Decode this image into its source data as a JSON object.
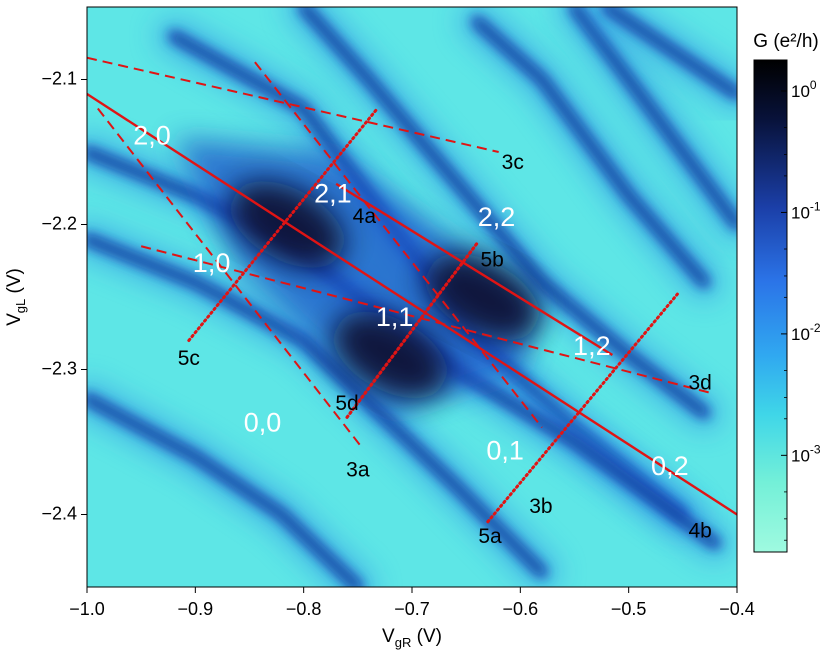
{
  "chart_data": {
    "type": "heatmap",
    "title": "",
    "xlabel": {
      "main": "V",
      "sub": "gR",
      "unit": " (V)"
    },
    "ylabel": {
      "main": "V",
      "sub": "gL",
      "unit": " (V)"
    },
    "xlim": [
      -1.0,
      -0.4
    ],
    "ylim": [
      -2.45,
      -2.05
    ],
    "x_ticks": [
      {
        "value": -1.0,
        "label": "−1.0"
      },
      {
        "value": -0.9,
        "label": "−0.9"
      },
      {
        "value": -0.8,
        "label": "−0.8"
      },
      {
        "value": -0.7,
        "label": "−0.7"
      },
      {
        "value": -0.6,
        "label": "−0.6"
      },
      {
        "value": -0.5,
        "label": "−0.5"
      },
      {
        "value": -0.4,
        "label": "−0.4"
      }
    ],
    "y_ticks": [
      {
        "value": -2.1,
        "label": "−2.1"
      },
      {
        "value": -2.2,
        "label": "−2.2"
      },
      {
        "value": -2.3,
        "label": "−2.3"
      },
      {
        "value": -2.4,
        "label": "−2.4"
      }
    ],
    "colorbar": {
      "title": "G (e²/h)",
      "scale": "log",
      "ticks": [
        {
          "base": "10",
          "exp": "0",
          "value": 1
        },
        {
          "base": "10",
          "exp": "-1",
          "value": 0.1
        },
        {
          "base": "10",
          "exp": "-2",
          "value": 0.01
        },
        {
          "base": "10",
          "exp": "-3",
          "value": 0.001
        }
      ],
      "colors": [
        "#000000",
        "#08123a",
        "#1b3fa8",
        "#2b74e8",
        "#30a8f0",
        "#3fd6e8",
        "#74f0d8",
        "#9ffae0"
      ]
    },
    "background_color": "#5ee6e6",
    "dark_bands": [
      {
        "points": [
          [
            -0.92,
            -2.07
          ],
          [
            -0.8,
            -2.12
          ],
          [
            -0.72,
            -2.2
          ],
          [
            -0.64,
            -2.28
          ],
          [
            -0.55,
            -2.34
          ],
          [
            -0.45,
            -2.4
          ]
        ]
      },
      {
        "points": [
          [
            -1.0,
            -2.15
          ],
          [
            -0.9,
            -2.18
          ],
          [
            -0.82,
            -2.21
          ],
          [
            -0.75,
            -2.25
          ],
          [
            -0.66,
            -2.3
          ],
          [
            -0.55,
            -2.35
          ],
          [
            -0.42,
            -2.42
          ]
        ]
      },
      {
        "points": [
          [
            -0.8,
            -2.05
          ],
          [
            -0.74,
            -2.1
          ],
          [
            -0.66,
            -2.17
          ],
          [
            -0.58,
            -2.24
          ],
          [
            -0.5,
            -2.29
          ],
          [
            -0.43,
            -2.33
          ]
        ]
      },
      {
        "points": [
          [
            -1.0,
            -2.21
          ],
          [
            -0.9,
            -2.24
          ],
          [
            -0.8,
            -2.28
          ],
          [
            -0.73,
            -2.33
          ],
          [
            -0.66,
            -2.38
          ],
          [
            -0.58,
            -2.44
          ]
        ]
      },
      {
        "points": [
          [
            -0.64,
            -2.06
          ],
          [
            -0.58,
            -2.1
          ],
          [
            -0.5,
            -2.18
          ],
          [
            -0.43,
            -2.24
          ]
        ]
      },
      {
        "points": [
          [
            -0.55,
            -2.05
          ],
          [
            -0.5,
            -2.1
          ],
          [
            -0.44,
            -2.16
          ],
          [
            -0.4,
            -2.2
          ]
        ]
      },
      {
        "points": [
          [
            -0.52,
            -2.05
          ],
          [
            -0.46,
            -2.08
          ],
          [
            -0.4,
            -2.11
          ]
        ]
      },
      {
        "points": [
          [
            -1.0,
            -2.32
          ],
          [
            -0.9,
            -2.36
          ],
          [
            -0.82,
            -2.4
          ],
          [
            -0.75,
            -2.45
          ]
        ]
      }
    ],
    "dark_blobs": [
      {
        "x": -0.815,
        "y": -2.2
      },
      {
        "x": -0.72,
        "y": -2.29
      },
      {
        "x": -0.635,
        "y": -2.25
      }
    ],
    "lines": [
      {
        "id": "4",
        "style": "solid",
        "x": [
          -1.0,
          -0.4
        ],
        "y": [
          -2.11,
          -2.4
        ]
      },
      {
        "id": "4a",
        "style": "solid",
        "x": [
          -0.77,
          -0.515
        ],
        "y": [
          -2.172,
          -2.29
        ]
      },
      {
        "id": "3a",
        "style": "dashed",
        "x": [
          -0.99,
          -0.745
        ],
        "y": [
          -2.12,
          -2.355
        ]
      },
      {
        "id": "3b",
        "style": "dashed",
        "x": [
          -0.845,
          -0.58
        ],
        "y": [
          -2.088,
          -2.34
        ]
      },
      {
        "id": "3c",
        "style": "dashed",
        "x": [
          -1.0,
          -0.62
        ],
        "y": [
          -2.085,
          -2.15
        ]
      },
      {
        "id": "3d",
        "style": "dashed",
        "x": [
          -0.95,
          -0.425
        ],
        "y": [
          -2.215,
          -2.316
        ]
      },
      {
        "id": "5a",
        "style": "dotted",
        "x": [
          -0.63,
          -0.455
        ],
        "y": [
          -2.405,
          -2.248
        ]
      },
      {
        "id": "5b",
        "style": "dotted",
        "x": [
          -0.76,
          -0.64
        ],
        "y": [
          -2.333,
          -2.213
        ]
      },
      {
        "id": "5c",
        "style": "dotted",
        "x": [
          -0.906,
          -0.732
        ],
        "y": [
          -2.28,
          -2.12
        ]
      },
      {
        "id": "5d",
        "style": "dotted",
        "x": [
          -0.76,
          -0.64
        ],
        "y": [
          -2.333,
          -2.213
        ]
      }
    ],
    "line_color": "#e01414",
    "annotations": {
      "state_labels": [
        {
          "text": "2,0",
          "x": -0.94,
          "y": -2.14
        },
        {
          "text": "2,1",
          "x": -0.773,
          "y": -2.18
        },
        {
          "text": "2,2",
          "x": -0.622,
          "y": -2.196
        },
        {
          "text": "1,0",
          "x": -0.885,
          "y": -2.228
        },
        {
          "text": "1,1",
          "x": -0.716,
          "y": -2.265
        },
        {
          "text": "1,2",
          "x": -0.534,
          "y": -2.285
        },
        {
          "text": "0,0",
          "x": -0.838,
          "y": -2.338
        },
        {
          "text": "0,1",
          "x": -0.614,
          "y": -2.357
        },
        {
          "text": "0,2",
          "x": -0.462,
          "y": -2.368
        }
      ],
      "line_labels": [
        {
          "text": "3c",
          "x": -0.607,
          "y": -2.158
        },
        {
          "text": "4a",
          "x": -0.744,
          "y": -2.195
        },
        {
          "text": "5b",
          "x": -0.626,
          "y": -2.225
        },
        {
          "text": "5c",
          "x": -0.906,
          "y": -2.293
        },
        {
          "text": "5d",
          "x": -0.76,
          "y": -2.324
        },
        {
          "text": "3d",
          "x": -0.434,
          "y": -2.31
        },
        {
          "text": "3a",
          "x": -0.75,
          "y": -2.37
        },
        {
          "text": "3b",
          "x": -0.581,
          "y": -2.395
        },
        {
          "text": "5a",
          "x": -0.628,
          "y": -2.416
        },
        {
          "text": "4b",
          "x": -0.434,
          "y": -2.412
        }
      ]
    }
  }
}
